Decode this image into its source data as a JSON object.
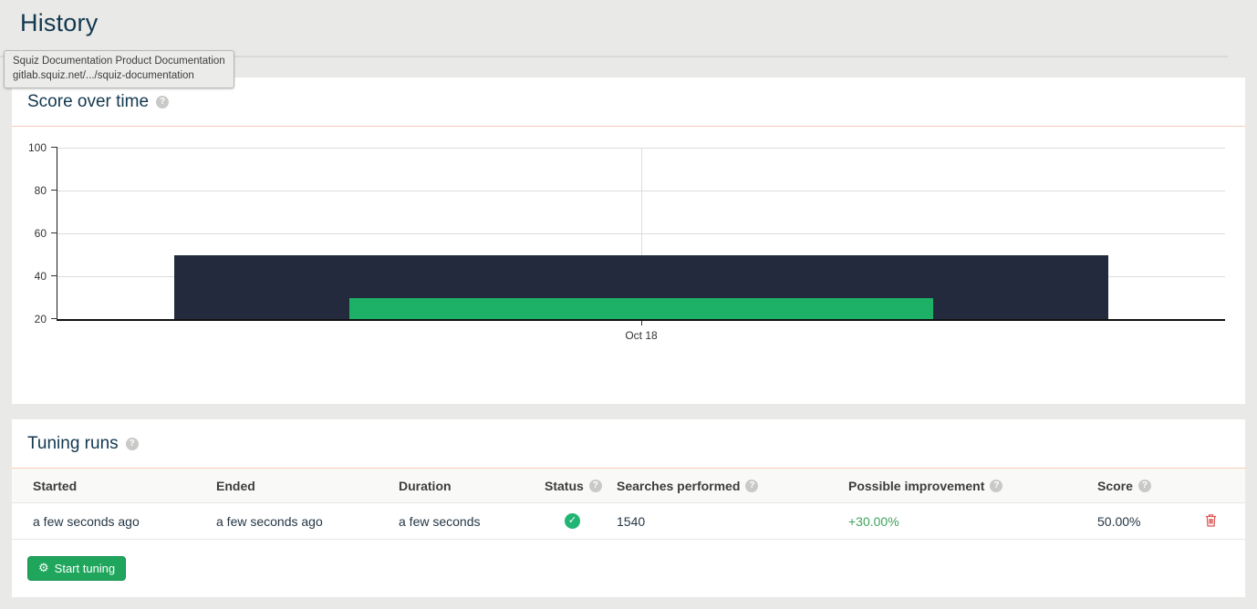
{
  "page": {
    "title": "History"
  },
  "tooltip": {
    "line1": "Squiz Documentation Product Documentation",
    "line2": "gitlab.squiz.net/.../squiz-documentation"
  },
  "score_panel": {
    "title": "Score over time"
  },
  "chart_data": {
    "type": "bar",
    "title": "Score over time",
    "x_categories": [
      "Oct 18"
    ],
    "series": [
      {
        "name": "Score",
        "values": [
          50
        ],
        "color": "#232a3d"
      },
      {
        "name": "Possible improvement",
        "values": [
          30
        ],
        "color": "#1db168"
      }
    ],
    "ylim": [
      20,
      100
    ],
    "yticks": [
      "100",
      "80",
      "60",
      "40",
      "20"
    ],
    "xlabel": "",
    "ylabel": "",
    "grid": true,
    "legend": "none",
    "bar_spans_pct": [
      [
        10,
        90
      ],
      [
        25,
        75
      ]
    ],
    "x_gridline_pct": 50
  },
  "tuning_panel": {
    "title": "Tuning runs",
    "table": {
      "headers": {
        "started": "Started",
        "ended": "Ended",
        "duration": "Duration",
        "status": "Status",
        "searches": "Searches performed",
        "improvement": "Possible improvement",
        "score": "Score"
      },
      "rows": [
        {
          "started": "a few seconds ago",
          "ended": "a few seconds ago",
          "duration": "a few seconds",
          "status": "success",
          "searches": "1540",
          "improvement": "+30.00%",
          "score": "50.00%"
        }
      ]
    },
    "start_button_label": "Start tuning"
  },
  "colors": {
    "heading": "#12384f",
    "panel_divider": "#f7cdb5",
    "bar_dark": "#232a3d",
    "bar_green": "#1db168",
    "button_green": "#1fa65c",
    "success_green": "#21b573",
    "improvement_green": "#3fa45c",
    "danger_red": "#d9534f"
  }
}
